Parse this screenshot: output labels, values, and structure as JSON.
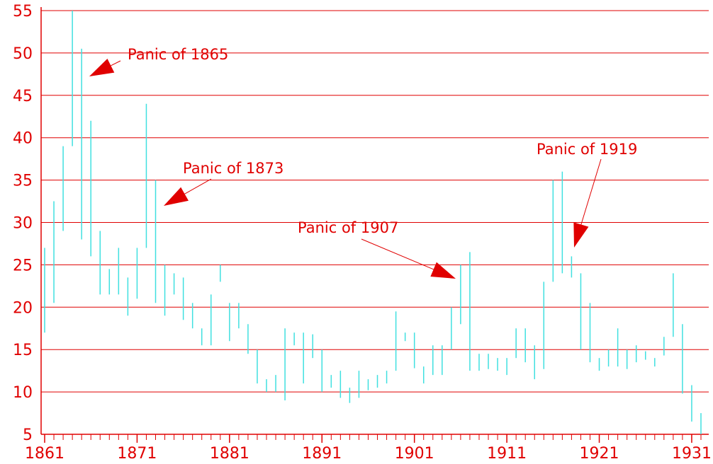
{
  "chart_data": {
    "type": "range_bar",
    "color": "#40e0e0",
    "grid": true,
    "x": [
      1861,
      1862,
      1863,
      1864,
      1865,
      1866,
      1867,
      1868,
      1869,
      1870,
      1871,
      1872,
      1873,
      1874,
      1875,
      1876,
      1877,
      1878,
      1879,
      1880,
      1881,
      1882,
      1883,
      1884,
      1885,
      1886,
      1887,
      1888,
      1889,
      1890,
      1891,
      1892,
      1893,
      1894,
      1895,
      1896,
      1897,
      1898,
      1899,
      1900,
      1901,
      1902,
      1903,
      1904,
      1905,
      1906,
      1907,
      1908,
      1909,
      1910,
      1911,
      1912,
      1913,
      1914,
      1915,
      1916,
      1917,
      1918,
      1919,
      1920,
      1921,
      1922,
      1923,
      1924,
      1925,
      1926,
      1927,
      1928,
      1929,
      1930,
      1931,
      1932
    ],
    "low": [
      17,
      20.5,
      29,
      39,
      28,
      26,
      21.5,
      21.5,
      21.5,
      19,
      21,
      27,
      20.5,
      19,
      21.5,
      18.5,
      17.5,
      15.5,
      15.5,
      23,
      16,
      17.5,
      14.5,
      11,
      10,
      10,
      9,
      15.5,
      11,
      14,
      10,
      10.5,
      9.3,
      8.7,
      9.3,
      10.2,
      10.5,
      11,
      12.5,
      16,
      12.8,
      11,
      12,
      12,
      15,
      18,
      12.5,
      12.5,
      12.7,
      12.5,
      12,
      14,
      13.5,
      11.5,
      12.7,
      23,
      24,
      23.5,
      15,
      13.5,
      12.5,
      13,
      13,
      12.7,
      13.5,
      13.8,
      13,
      14.3,
      16.5,
      9.8,
      6.5,
      5
    ],
    "high": [
      27,
      32.5,
      39,
      55,
      50.5,
      42,
      29,
      24.5,
      27,
      23.5,
      27,
      44,
      35,
      25,
      24,
      23.5,
      20.5,
      17.5,
      21.5,
      25,
      20.5,
      20.5,
      18,
      15,
      11.5,
      12,
      17.5,
      17,
      17,
      16.8,
      15,
      12,
      12.5,
      10.5,
      12.5,
      11.5,
      12,
      12.5,
      19.5,
      17,
      17,
      13,
      15.5,
      15.5,
      20,
      25,
      26.5,
      14.5,
      14.5,
      14,
      14,
      17.5,
      17.5,
      15.5,
      23,
      35,
      36,
      26,
      24,
      20.5,
      14,
      15,
      17.5,
      15,
      15.5,
      14.8,
      14,
      16.5,
      24,
      18,
      10.8,
      7.5
    ],
    "xlim": [
      1861,
      1932
    ],
    "ylim": [
      5,
      55
    ],
    "xticks": [
      1861,
      1871,
      1881,
      1891,
      1901,
      1911,
      1921,
      1931
    ],
    "yticks": [
      5,
      10,
      15,
      20,
      25,
      30,
      35,
      40,
      45,
      50,
      55
    ],
    "annotations": [
      "Panic of 1865",
      "Panic of 1873",
      "Panic of 1907",
      "Panic of 1919"
    ]
  }
}
